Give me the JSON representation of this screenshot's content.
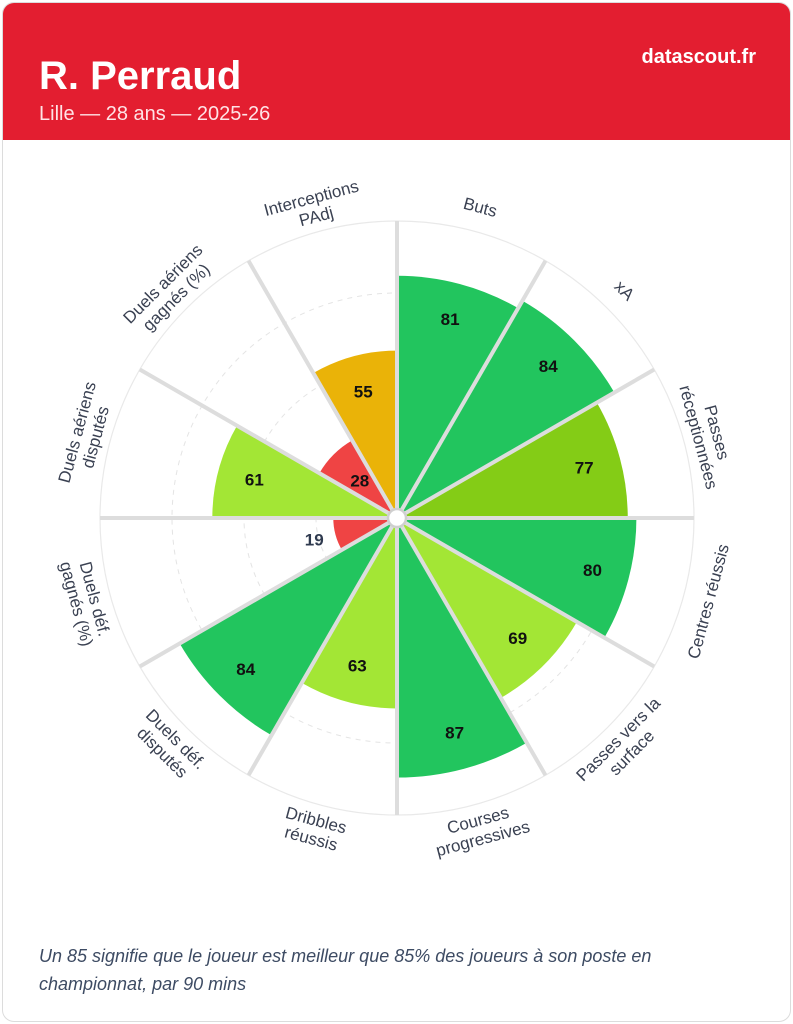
{
  "header": {
    "player_name": "R. Perraud",
    "subtitle": "Lille — 28 ans — 2025-26",
    "brand": "datascout.fr"
  },
  "footnote": "Un 85 signifie que le joueur est meilleur que 85% des joueurs à son poste en championnat, par 90 mins",
  "colors": {
    "header_bg": "#e31e30",
    "tier_90_plus": "#16a34a",
    "tier_80": "#22c55e",
    "tier_70": "#84cc16",
    "tier_60": "#a3e635",
    "tier_50": "#eab308",
    "tier_30": "#f97316",
    "tier_0": "#ef4444"
  },
  "chart_data": {
    "type": "polar-bar",
    "title": "",
    "scale_max": 100,
    "categories": [
      "Buts",
      "xA",
      "Passes réceptionnées",
      "Centres réussis",
      "Passes vers la surface",
      "Courses progressives",
      "Dribbles réussis",
      "Duels déf. disputés",
      "Duels déf. gagnés (%)",
      "Duels aériens disputés",
      "Duels aériens gagnés (%)",
      "Interceptions PAdj"
    ],
    "values": [
      81,
      84,
      77,
      80,
      69,
      87,
      63,
      84,
      19,
      61,
      28,
      55
    ],
    "label_lines": [
      [
        "Buts"
      ],
      [
        "xA"
      ],
      [
        "Passes",
        "réceptionnées"
      ],
      [
        "Centres réussis"
      ],
      [
        "Passes vers la",
        "surface"
      ],
      [
        "Courses",
        "progressives"
      ],
      [
        "Dribbles",
        "réussis"
      ],
      [
        "Duels déf.",
        "disputés"
      ],
      [
        "Duels déf.",
        "gagnés (%)"
      ],
      [
        "Duels aériens",
        "disputés"
      ],
      [
        "Duels aériens",
        "gagnés (%)"
      ],
      [
        "Interceptions",
        "PAdj"
      ]
    ],
    "grid": true,
    "legend": "none"
  }
}
